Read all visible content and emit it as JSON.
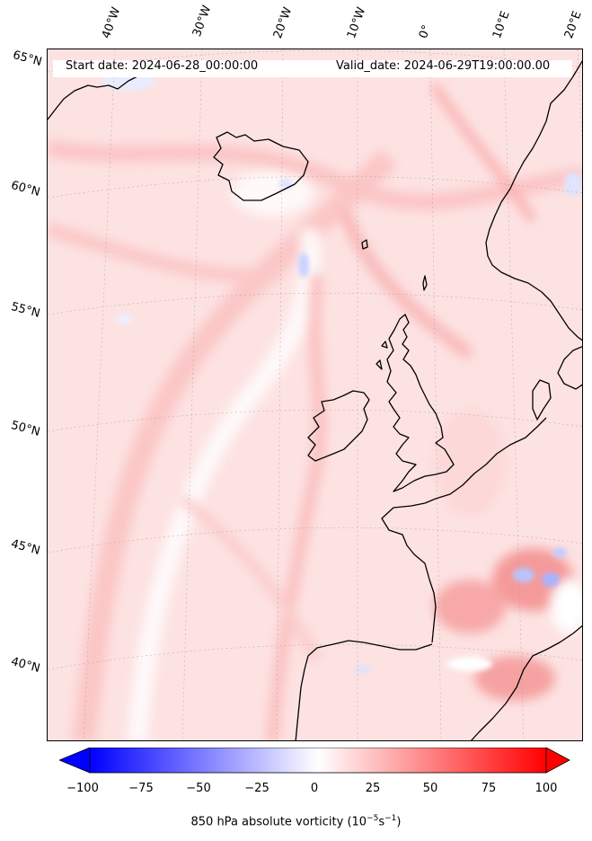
{
  "title": {
    "start_date": "Start date: 2024-06-28_00:00:00",
    "valid_date": "Valid_date: 2024-06-29T19:00:00.00"
  },
  "graticule": {
    "longitudes": [
      "40°W",
      "30°W",
      "20°W",
      "10°W",
      "0°",
      "10°E",
      "20°E"
    ],
    "latitudes": [
      "65°N",
      "60°N",
      "55°N",
      "50°N",
      "45°N",
      "40°N"
    ]
  },
  "colorbar": {
    "min": -100,
    "max": 100,
    "ticks": [
      "−100",
      "−75",
      "−50",
      "−25",
      "0",
      "25",
      "50",
      "75",
      "100"
    ],
    "label_main": "850 hPa absolute vorticity (10",
    "label_exp1": "−5",
    "label_mid": "s",
    "label_exp2": "−1",
    "label_end": ")",
    "colormap": "bwr",
    "low_color": "#0000ff",
    "mid_color": "#ffffff",
    "high_color": "#ff0000"
  },
  "colors": {
    "background_field": "#fde4e4",
    "coastline": "#000000"
  }
}
